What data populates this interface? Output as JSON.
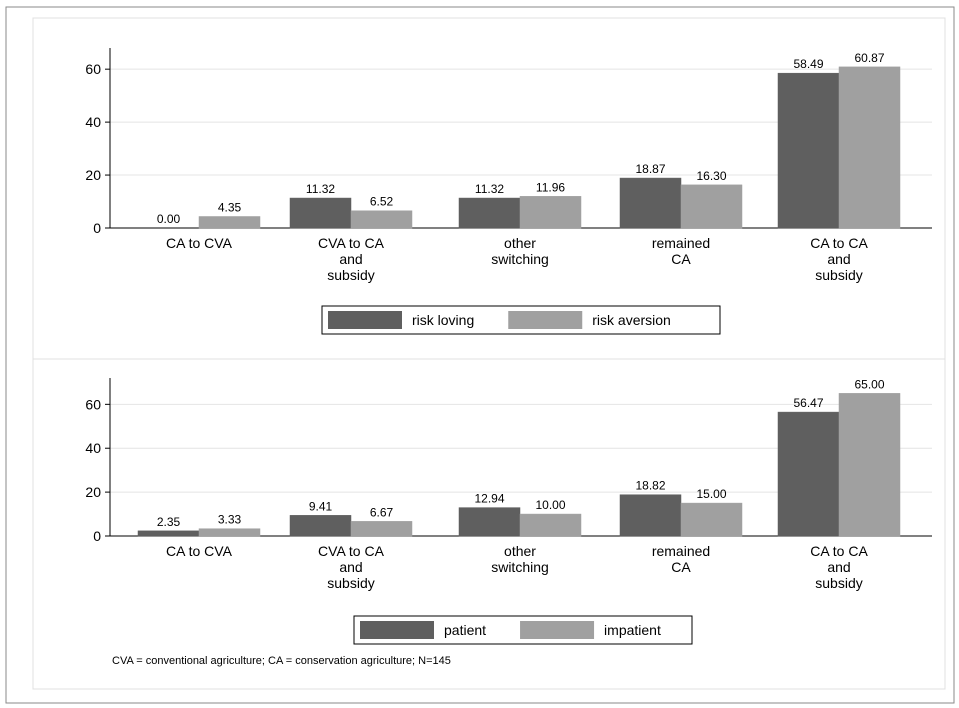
{
  "chart_data": [
    {
      "type": "bar",
      "categories": [
        [
          "CA to CVA"
        ],
        [
          "CVA to CA",
          "and",
          "subsidy"
        ],
        [
          "other",
          "switching"
        ],
        [
          "remained",
          "CA"
        ],
        [
          "CA to CA",
          "and",
          "subsidy"
        ]
      ],
      "series": [
        {
          "name": "risk loving",
          "values": [
            0.0,
            11.32,
            11.32,
            18.87,
            58.49
          ],
          "labels": [
            "0.00",
            "11.32",
            "11.32",
            "18.87",
            "58.49"
          ],
          "color": "#5f5f5f"
        },
        {
          "name": "risk aversion",
          "values": [
            4.35,
            6.52,
            11.96,
            16.3,
            60.87
          ],
          "labels": [
            "4.35",
            "6.52",
            "11.96",
            "16.30",
            "60.87"
          ],
          "color": "#a0a0a0"
        }
      ],
      "ylim": [
        0,
        68
      ],
      "yticks": [
        0,
        20,
        40,
        60
      ],
      "grid": true,
      "legend": "bottom-center"
    },
    {
      "type": "bar",
      "categories": [
        [
          "CA to CVA"
        ],
        [
          "CVA to CA",
          "and",
          "subsidy"
        ],
        [
          "other",
          "switching"
        ],
        [
          "remained",
          "CA"
        ],
        [
          "CA to CA",
          "and",
          "subsidy"
        ]
      ],
      "series": [
        {
          "name": "patient",
          "values": [
            2.35,
            9.41,
            12.94,
            18.82,
            56.47
          ],
          "labels": [
            "2.35",
            "9.41",
            "12.94",
            "18.82",
            "56.47"
          ],
          "color": "#5f5f5f"
        },
        {
          "name": "impatient",
          "values": [
            3.33,
            6.67,
            10.0,
            15.0,
            65.0
          ],
          "labels": [
            "3.33",
            "6.67",
            "10.00",
            "15.00",
            "65.00"
          ],
          "color": "#a0a0a0"
        }
      ],
      "ylim": [
        0,
        72
      ],
      "yticks": [
        0,
        20,
        40,
        60
      ],
      "grid": true,
      "legend": "bottom-center"
    }
  ],
  "note": "CVA = conventional agriculture; CA = conservation agriculture; N=145",
  "colors": {
    "frame": "#8a8a8a",
    "grid": "#e4e4e4",
    "panel_border": "#dcdcdc"
  }
}
